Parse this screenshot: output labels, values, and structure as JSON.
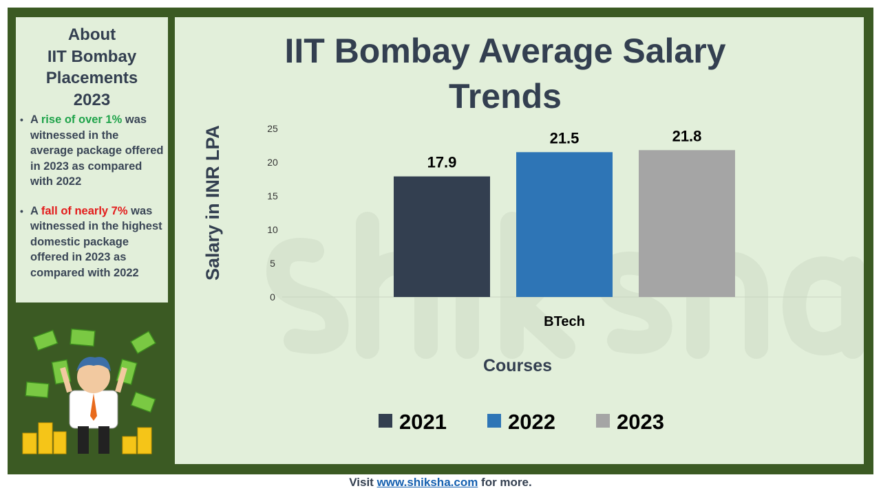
{
  "sidebar": {
    "heading": "About\nIIT Bombay\nPlacements\n2023",
    "bullets": [
      {
        "prefix": "A ",
        "highlight": "rise of over 1%",
        "rest": " was witnessed in the average package offered in 2023 as compared with 2022",
        "highlight_color": "#1fa34a"
      },
      {
        "prefix": "A ",
        "highlight": "fall of nearly 7%",
        "rest": " was witnessed in the highest domestic package offered in 2023 as compared with 2022",
        "highlight_color": "#e31b1b"
      }
    ]
  },
  "watermark": "shiksha",
  "footer": {
    "pre": "Visit ",
    "link": "www.shiksha.com",
    "post": " for more."
  },
  "colors": {
    "frame": "#3b5a23",
    "panel": "#e2efda",
    "text": "#333f50"
  },
  "chart_data": {
    "type": "bar",
    "title": "IIT Bombay Average Salary Trends",
    "xlabel": "Courses",
    "ylabel": "Salary in INR LPA",
    "categories": [
      "BTech"
    ],
    "series": [
      {
        "name": "2021",
        "values": [
          17.9
        ],
        "color": "#333f50"
      },
      {
        "name": "2022",
        "values": [
          21.5
        ],
        "color": "#2e75b6"
      },
      {
        "name": "2023",
        "values": [
          21.8
        ],
        "color": "#a5a5a5"
      }
    ],
    "ylim": [
      0,
      25
    ],
    "yticks": [
      0,
      5,
      10,
      15,
      20,
      25
    ],
    "grid": false,
    "legend": "bottom"
  }
}
